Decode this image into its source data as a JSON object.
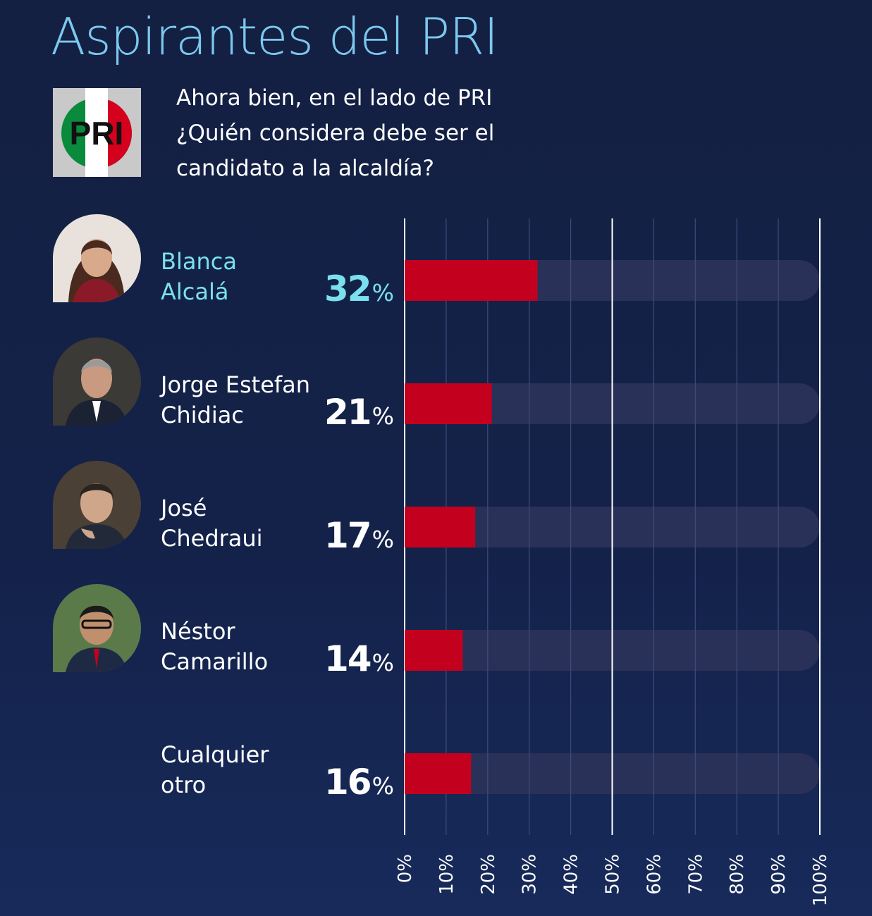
{
  "title": "Aspirantes del PRI",
  "logo": {
    "text": "PRI"
  },
  "question": "Ahora bien, en el lado de PRI ¿Quién considera debe ser el candidato a la alcaldía?",
  "colors": {
    "bar": "#c4001f",
    "track": "#2a3158",
    "title": "#7cc8ee",
    "highlight": "#7be0ee",
    "grid": "#ffffff"
  },
  "chart_data": {
    "type": "bar",
    "orientation": "horizontal",
    "categories": [
      "Blanca Alcalá",
      "Jorge Estefan Chidiac",
      "José Chedraui",
      "Néstor Camarillo",
      "Cualquier otro"
    ],
    "values": [
      32,
      21,
      17,
      14,
      16
    ],
    "xlim": [
      0,
      100
    ],
    "ticks": [
      "0%",
      "10%",
      "20%",
      "30%",
      "40%",
      "50%",
      "60%",
      "70%",
      "80%",
      "90%",
      "100%"
    ],
    "unit": "%"
  },
  "candidates": [
    {
      "name_line1": "Blanca",
      "name_line2": "Alcalá",
      "pct": "32",
      "unit": "%"
    },
    {
      "name_line1": "Jorge Estefan",
      "name_line2": "Chidiac",
      "pct": "21",
      "unit": "%"
    },
    {
      "name_line1": "José",
      "name_line2": "Chedraui",
      "pct": "17",
      "unit": "%"
    },
    {
      "name_line1": "Néstor",
      "name_line2": "Camarillo",
      "pct": "14",
      "unit": "%"
    },
    {
      "name_line1": "Cualquier",
      "name_line2": "otro",
      "pct": "16",
      "unit": "%"
    }
  ]
}
